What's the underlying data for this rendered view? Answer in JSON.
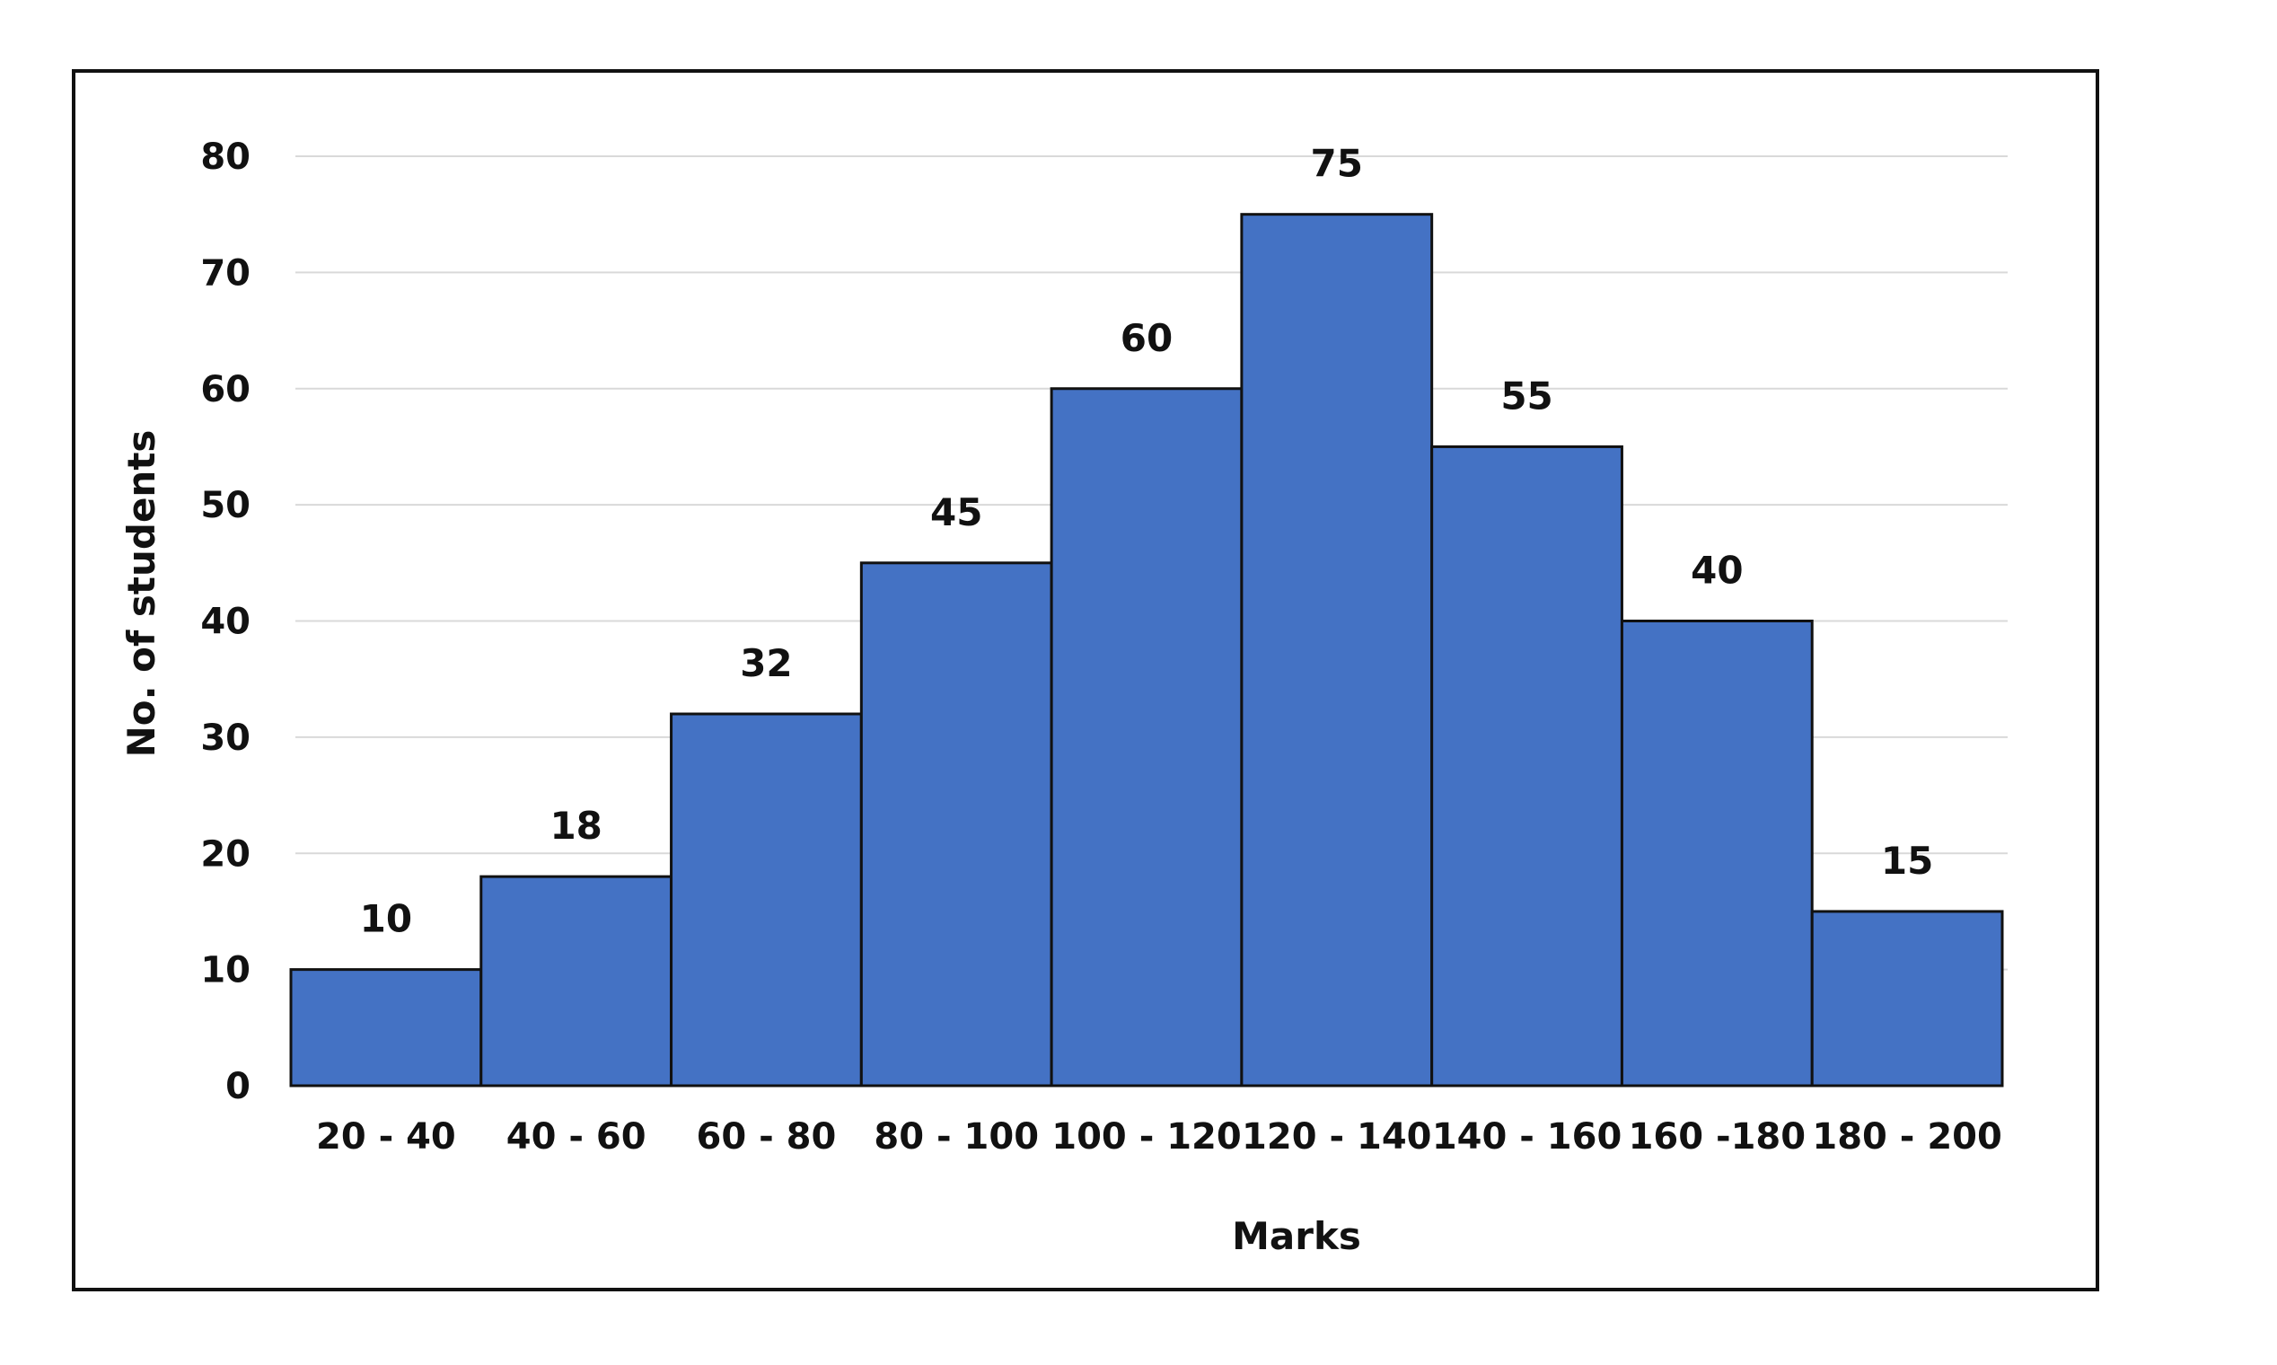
{
  "chart_data": {
    "type": "bar",
    "categories": [
      "20 - 40",
      "40 - 60",
      "60 - 80",
      "80 - 100",
      "100 - 120",
      "120 - 140",
      "140 - 160",
      "160 -180",
      "180 - 200"
    ],
    "values": [
      10,
      18,
      32,
      45,
      60,
      75,
      55,
      40,
      15
    ],
    "data_labels": [
      "10",
      "18",
      "32",
      "45",
      "60",
      "75",
      "55",
      "40",
      "15"
    ],
    "xlabel": "Marks",
    "ylabel": "No. of students",
    "ylim": [
      0,
      80
    ],
    "yticks": [
      0,
      10,
      20,
      30,
      40,
      50,
      60,
      70,
      80
    ],
    "grid": true,
    "bar_color": "#4472c4",
    "bar_outline_color": "#111111",
    "bar_gap": 0
  }
}
